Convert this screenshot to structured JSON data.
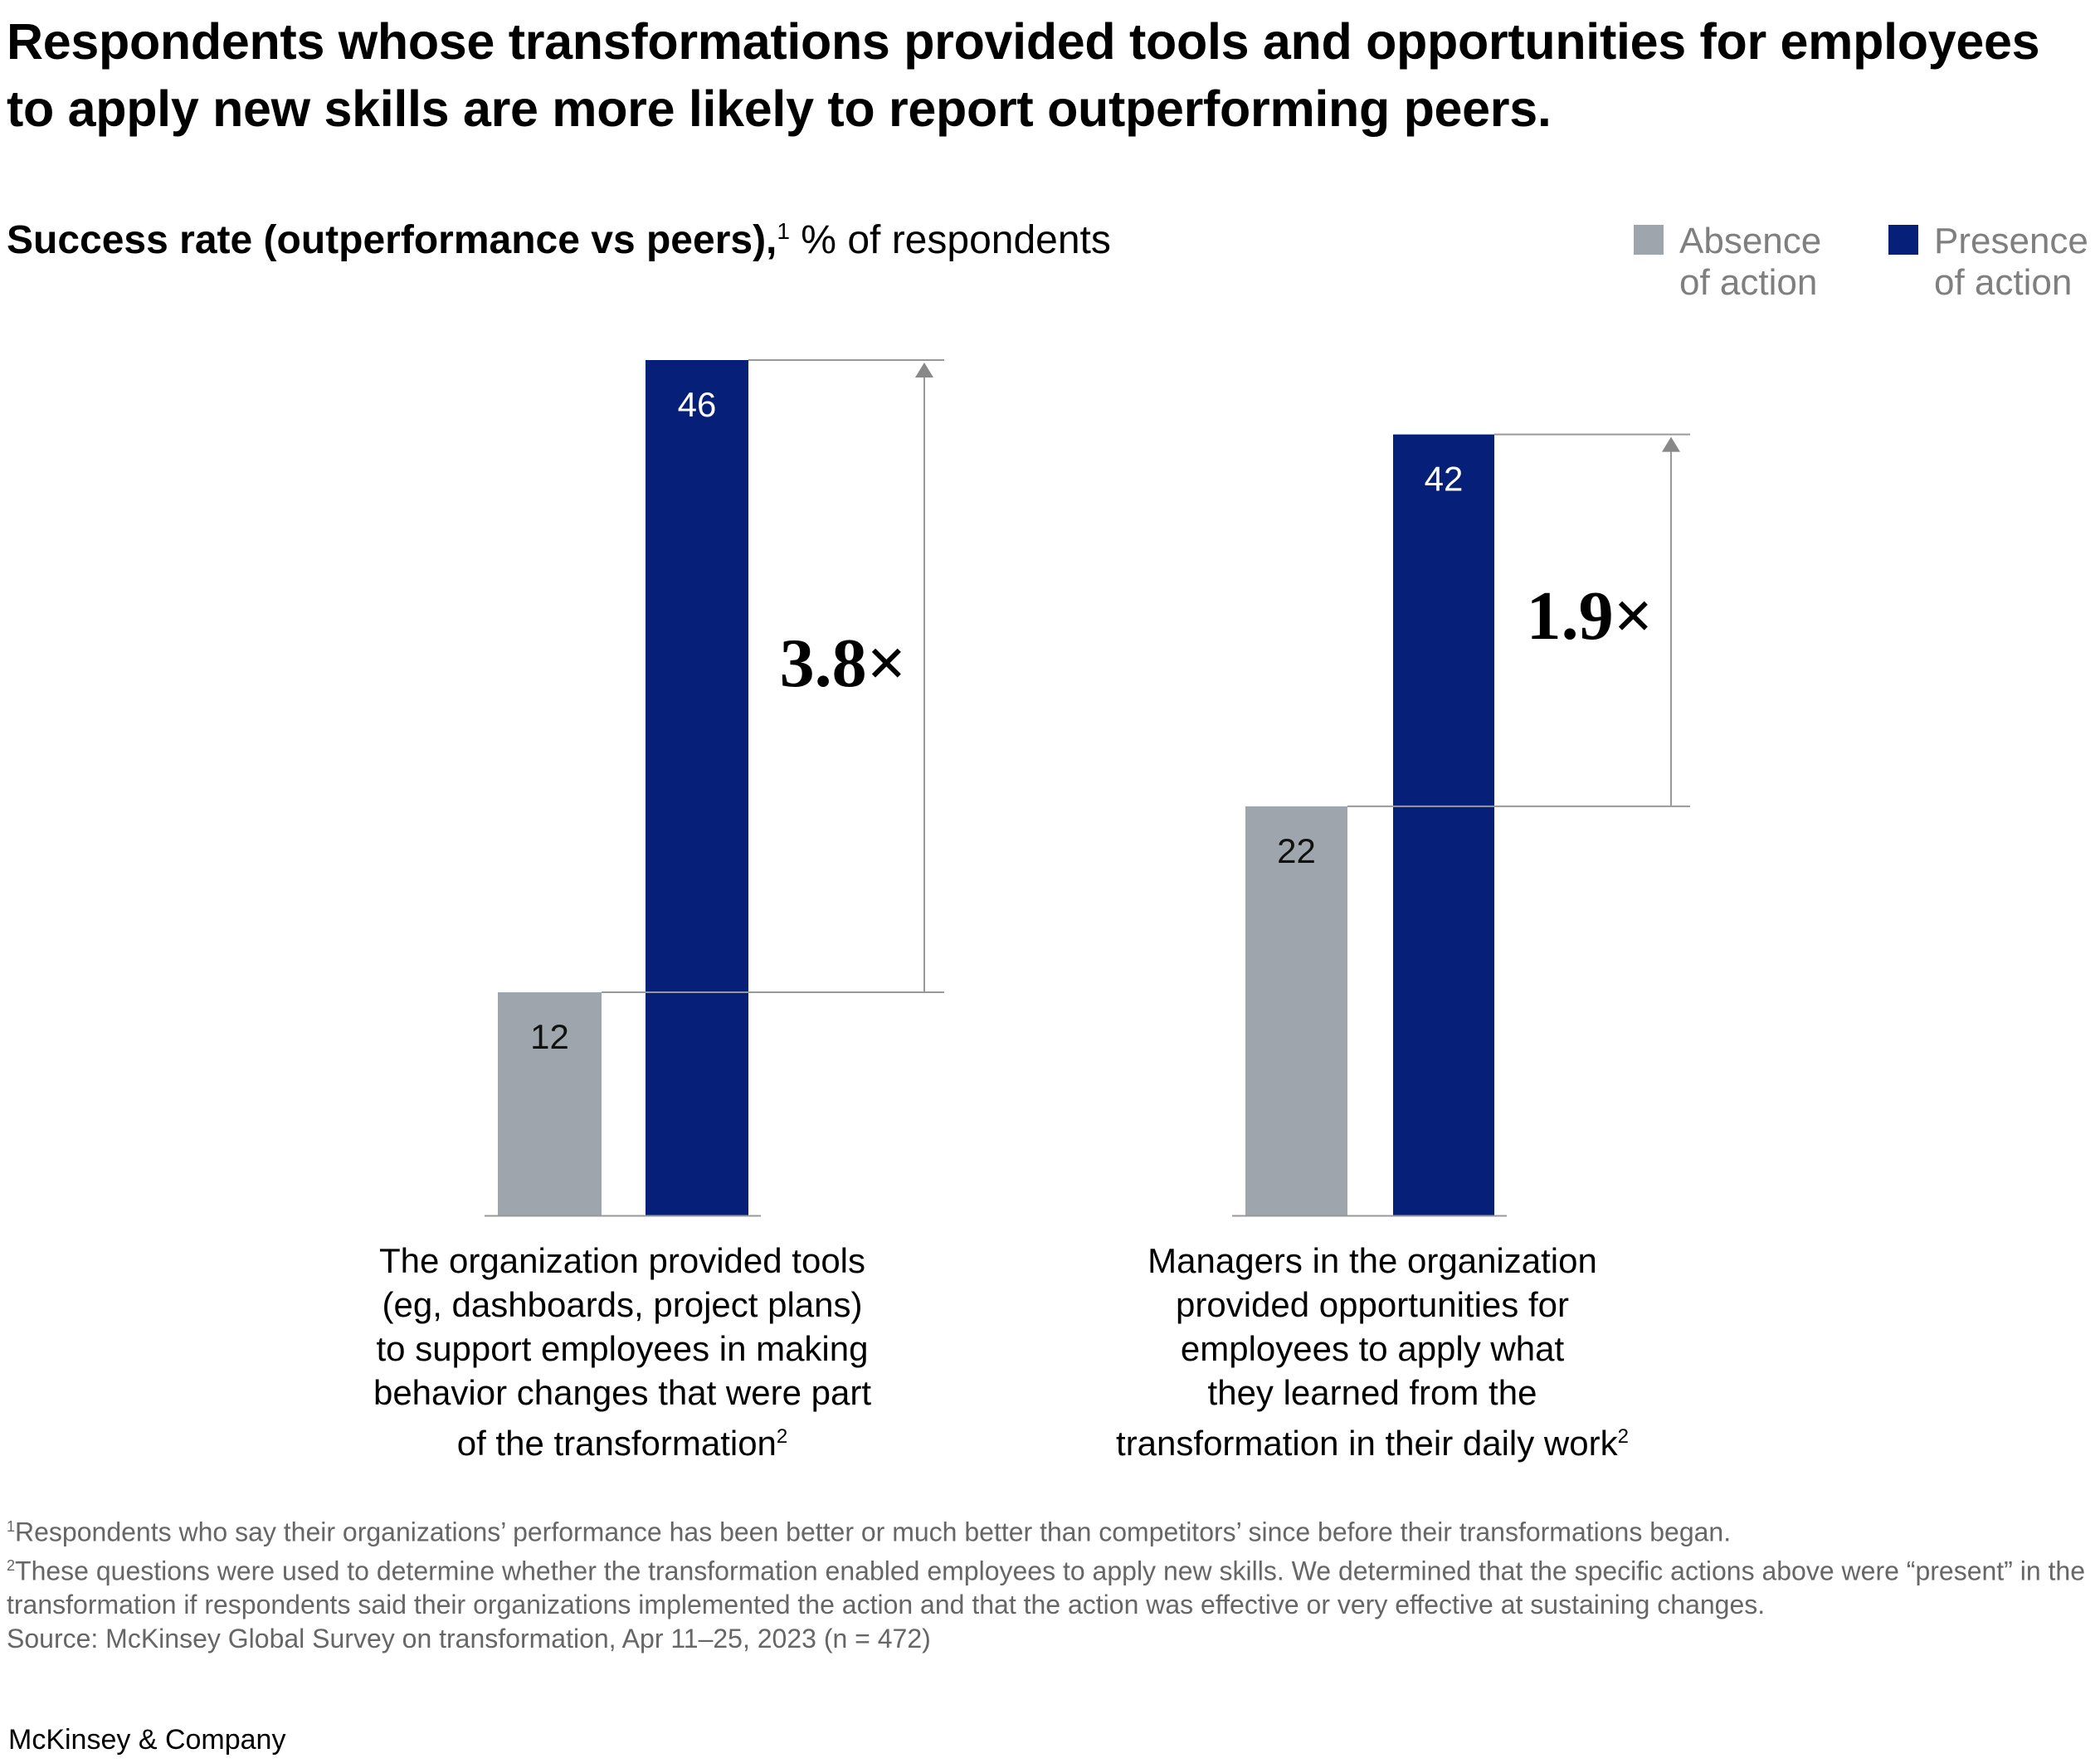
{
  "title": "Respondents whose transformations provided tools and opportunities for employees to apply new skills are more likely to report outperforming peers.",
  "subtitle": {
    "bold": "Success rate (outperformance vs peers),",
    "sup": "1",
    "rest": " % of respondents"
  },
  "legend": [
    {
      "label_1": "Absence",
      "label_2": "of action",
      "color": "#9ea5ac"
    },
    {
      "label_1": "Presence",
      "label_2": "of action",
      "color": "#061f79"
    }
  ],
  "chart_data": {
    "type": "bar",
    "ylabel": "Success rate (outperformance vs peers), % of respondents",
    "categories": [
      "The organization provided tools (eg, dashboards, project plans) to support employees in making behavior changes that were part of the transformation",
      "Managers in the organization provided opportunities for employees to apply what they learned from the transformation in their daily work"
    ],
    "category_lines": [
      [
        "The organization provided tools",
        "(eg, dashboards, project plans)",
        "to support employees in making",
        "behavior changes that were part",
        "of the transformation"
      ],
      [
        "Managers in the organization",
        "provided opportunities for",
        "employees to apply what",
        "they learned from the",
        "transformation in their daily work"
      ]
    ],
    "category_sup": "2",
    "series": [
      {
        "name": "Absence of action",
        "values": [
          12,
          22
        ],
        "color": "#9ea5ac"
      },
      {
        "name": "Presence of action",
        "values": [
          46,
          42
        ],
        "color": "#061f79"
      }
    ],
    "multipliers": [
      "3.8×",
      "1.9×"
    ],
    "ylim": [
      0,
      46
    ],
    "grid": false,
    "legend_position": "top-right"
  },
  "footnotes": [
    {
      "sup": "1",
      "text": "Respondents who say their organizations’ performance has been better or much better than competitors’ since before their transformations began."
    },
    {
      "sup": "2",
      "text": "These questions were used to determine whether the transformation enabled employees to apply new skills. We determined that the specific actions above were “present” in the transformation if respondents said their organizations implemented the action and that the action was effective or very effective at sustaining changes."
    },
    {
      "sup": "",
      "text": "Source: McKinsey Global Survey on transformation, Apr 11–25, 2023 (n = 472)"
    }
  ],
  "brand": "McKinsey & Company"
}
